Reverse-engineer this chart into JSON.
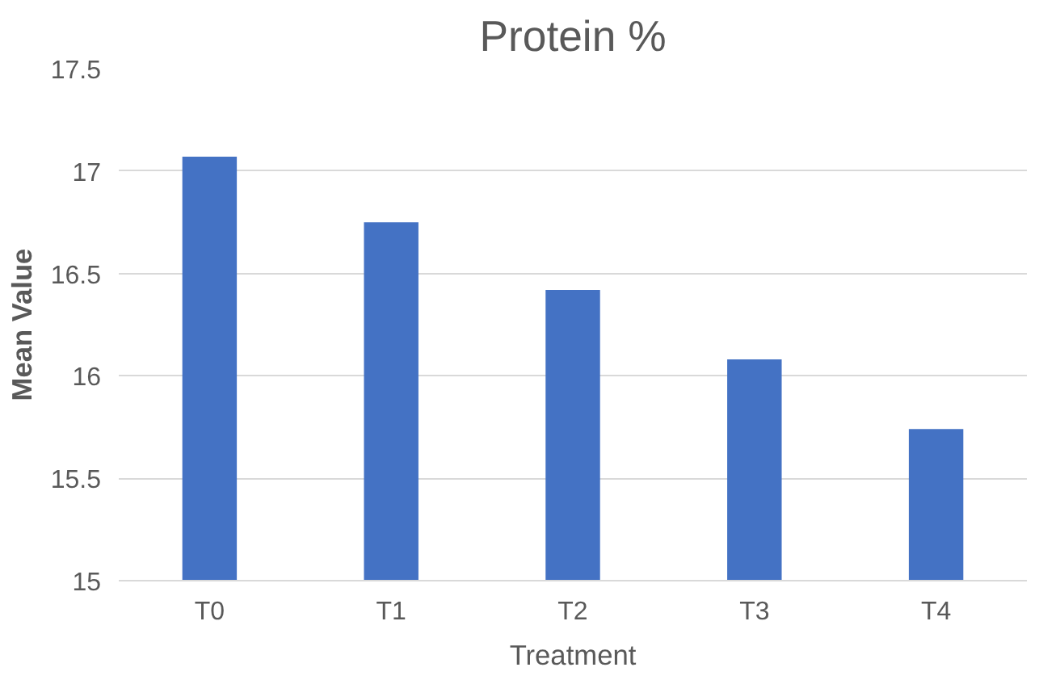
{
  "chart_data": {
    "type": "bar",
    "title": "Protein %",
    "xlabel": "Treatment",
    "ylabel": "Mean Value",
    "categories": [
      "T0",
      "T1",
      "T2",
      "T3",
      "T4"
    ],
    "values": [
      17.07,
      16.75,
      16.42,
      16.08,
      15.74
    ],
    "color": "#4472c4",
    "ylim": [
      15,
      17.5
    ],
    "yticks": [
      15,
      15.5,
      16,
      16.5,
      17,
      17.5
    ],
    "grid": "y"
  }
}
